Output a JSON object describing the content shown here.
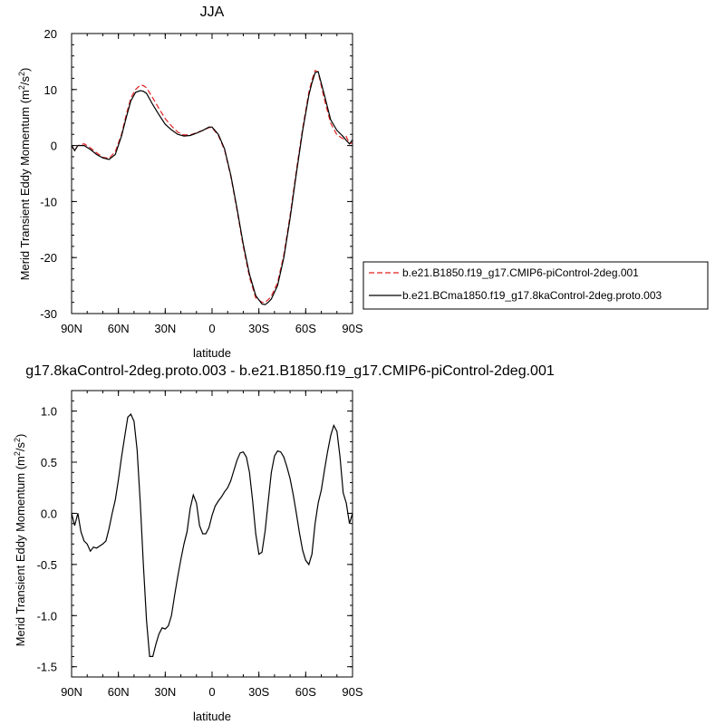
{
  "chart_data": [
    {
      "type": "line",
      "title": "JJA",
      "xlabel": "latitude",
      "ylabel": "Merid Transient Eddy Momentum (m²/s²)",
      "xlim": [
        90,
        -90
      ],
      "ylim": [
        -30,
        20
      ],
      "x_ticks": [
        {
          "value": 90,
          "label": "90N"
        },
        {
          "value": 60,
          "label": "60N"
        },
        {
          "value": 30,
          "label": "30N"
        },
        {
          "value": 0,
          "label": "0"
        },
        {
          "value": -30,
          "label": "30S"
        },
        {
          "value": -60,
          "label": "60S"
        },
        {
          "value": -90,
          "label": "90S"
        }
      ],
      "y_ticks": [
        20,
        10,
        0,
        -10,
        -20,
        -30
      ],
      "legend_position": "right",
      "series": [
        {
          "name": "b.e21.B1850.f19_g17.CMIP6-piControl-2deg.001",
          "color": "#e02020",
          "dash": "dashed",
          "x": [
            90,
            88,
            86,
            82,
            78,
            74,
            70,
            66,
            62,
            58,
            55,
            52,
            49,
            46,
            44,
            42,
            38,
            34,
            30,
            26,
            22,
            18,
            14,
            10,
            6,
            2,
            0,
            -4,
            -8,
            -12,
            -16,
            -20,
            -24,
            -28,
            -32,
            -34,
            -36,
            -38,
            -42,
            -46,
            -50,
            -54,
            -58,
            -62,
            -64,
            -66,
            -68,
            -72,
            -76,
            -80,
            -84,
            -86,
            -88,
            -90
          ],
          "y": [
            0.0,
            -0.9,
            0.0,
            0.3,
            -0.4,
            -1.3,
            -2.1,
            -2.3,
            -1.1,
            2.0,
            5.5,
            8.5,
            10.0,
            10.8,
            10.7,
            10.3,
            8.5,
            6.6,
            4.8,
            3.5,
            2.4,
            1.9,
            1.9,
            2.3,
            2.7,
            3.2,
            3.2,
            1.8,
            -0.8,
            -5.5,
            -11.6,
            -18.0,
            -23.5,
            -27.2,
            -28.0,
            -28.0,
            -27.5,
            -26.9,
            -24.5,
            -19.5,
            -12.5,
            -4.5,
            3.0,
            9.5,
            11.7,
            13.4,
            13.1,
            8.2,
            4.0,
            1.9,
            1.2,
            1.6,
            0.3,
            0.5
          ]
        },
        {
          "name": "b.e21.BCma1850.f19_g17.8kaControl-2deg.proto.003",
          "color": "#000000",
          "dash": "solid",
          "x": [
            90,
            88,
            86,
            82,
            78,
            74,
            70,
            66,
            62,
            58,
            55,
            52,
            49,
            46,
            44,
            42,
            38,
            34,
            30,
            26,
            22,
            18,
            14,
            10,
            6,
            2,
            0,
            -4,
            -8,
            -12,
            -16,
            -20,
            -24,
            -28,
            -32,
            -34,
            -36,
            -38,
            -42,
            -46,
            -50,
            -54,
            -58,
            -62,
            -64,
            -66,
            -68,
            -72,
            -76,
            -80,
            -84,
            -86,
            -88,
            -90
          ],
          "y": [
            0.0,
            -0.9,
            0.0,
            0.0,
            -0.7,
            -1.6,
            -2.2,
            -2.5,
            -1.6,
            1.7,
            5.0,
            8.0,
            9.5,
            9.8,
            9.7,
            9.3,
            7.3,
            5.5,
            3.8,
            2.8,
            2.0,
            1.7,
            1.8,
            2.2,
            2.7,
            3.3,
            3.3,
            2.0,
            -0.6,
            -5.3,
            -11.3,
            -17.6,
            -23.0,
            -26.8,
            -28.3,
            -28.4,
            -28.0,
            -27.4,
            -25.0,
            -20.0,
            -13.0,
            -5.0,
            2.6,
            9.0,
            11.2,
            13.0,
            13.2,
            9.0,
            4.6,
            2.7,
            1.6,
            0.9,
            0.3,
            1.0
          ]
        }
      ]
    },
    {
      "type": "line",
      "title": "g17.8kaControl-2deg.proto.003 - b.e21.B1850.f19_g17.CMIP6-piControl-2deg.001",
      "xlabel": "latitude",
      "ylabel": "Merid Transient Eddy Momentum (m²/s²)",
      "xlim": [
        90,
        -90
      ],
      "ylim": [
        -1.6,
        1.2
      ],
      "x_ticks": [
        {
          "value": 90,
          "label": "90N"
        },
        {
          "value": 60,
          "label": "60N"
        },
        {
          "value": 30,
          "label": "30N"
        },
        {
          "value": 0,
          "label": "0"
        },
        {
          "value": -30,
          "label": "30S"
        },
        {
          "value": -60,
          "label": "60S"
        },
        {
          "value": -90,
          "label": "90S"
        }
      ],
      "y_ticks": [
        {
          "value": 1.0,
          "label": "1.0"
        },
        {
          "value": 0.5,
          "label": "0.5"
        },
        {
          "value": 0.0,
          "label": "0.0"
        },
        {
          "value": -0.5,
          "label": "-0.5"
        },
        {
          "value": -1.0,
          "label": "-1.0"
        },
        {
          "value": -1.5,
          "label": "-1.5"
        }
      ],
      "series": [
        {
          "name": "",
          "color": "#000000",
          "dash": "solid",
          "x": [
            90,
            88,
            86,
            84,
            82,
            80,
            78,
            76,
            74,
            72,
            70,
            68,
            66,
            64,
            62,
            60,
            58,
            56,
            54,
            52,
            50,
            48,
            46,
            44,
            42,
            40,
            38,
            36,
            34,
            32,
            30,
            28,
            26,
            24,
            22,
            20,
            18,
            16,
            14,
            12,
            10,
            8,
            6,
            4,
            2,
            0,
            -2,
            -4,
            -6,
            -8,
            -10,
            -12,
            -14,
            -16,
            -18,
            -20,
            -22,
            -24,
            -26,
            -28,
            -30,
            -32,
            -34,
            -36,
            -38,
            -40,
            -42,
            -44,
            -46,
            -48,
            -50,
            -52,
            -54,
            -56,
            -58,
            -60,
            -62,
            -64,
            -66,
            -68,
            -70,
            -72,
            -74,
            -76,
            -78,
            -80,
            -82,
            -84,
            -86,
            -88,
            -90
          ],
          "y": [
            0.0,
            -0.12,
            0.0,
            -0.18,
            -0.27,
            -0.3,
            -0.37,
            -0.33,
            -0.34,
            -0.32,
            -0.3,
            -0.27,
            -0.15,
            0.0,
            0.13,
            0.33,
            0.55,
            0.75,
            0.94,
            0.97,
            0.9,
            0.62,
            0.1,
            -0.5,
            -1.05,
            -1.4,
            -1.4,
            -1.28,
            -1.18,
            -1.12,
            -1.13,
            -1.1,
            -1.0,
            -0.8,
            -0.62,
            -0.45,
            -0.3,
            -0.18,
            0.05,
            0.18,
            0.1,
            -0.12,
            -0.2,
            -0.2,
            -0.14,
            -0.02,
            0.07,
            0.12,
            0.16,
            0.21,
            0.25,
            0.32,
            0.42,
            0.52,
            0.59,
            0.6,
            0.55,
            0.4,
            0.12,
            -0.2,
            -0.4,
            -0.38,
            -0.17,
            0.12,
            0.4,
            0.56,
            0.61,
            0.6,
            0.55,
            0.45,
            0.34,
            0.18,
            0.0,
            -0.19,
            -0.36,
            -0.46,
            -0.5,
            -0.4,
            -0.1,
            0.1,
            0.23,
            0.42,
            0.6,
            0.76,
            0.86,
            0.8,
            0.55,
            0.2,
            0.1,
            -0.1,
            0.0
          ]
        }
      ]
    }
  ]
}
